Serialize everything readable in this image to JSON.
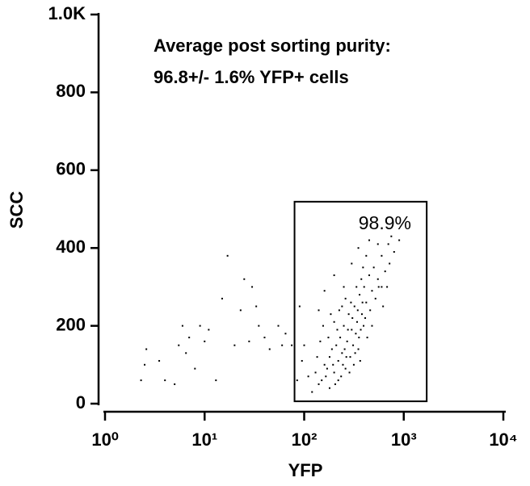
{
  "chart_data": {
    "type": "scatter",
    "x_label": "YFP",
    "y_label": "SCC",
    "annotations": [
      "Average post sorting purity:",
      "96.8+/- 1.6% YFP+ cells"
    ],
    "x_scale": "log",
    "color": "#000000",
    "xlim": [
      1,
      10000
    ],
    "xticks": [
      {
        "value": 1,
        "label": "10⁰"
      },
      {
        "value": 10,
        "label": "10¹"
      },
      {
        "value": 100,
        "label": "10²"
      },
      {
        "value": 1000,
        "label": "10³"
      },
      {
        "value": 10000,
        "label": "10⁴"
      }
    ],
    "ylim": [
      0,
      1000
    ],
    "yticks": [
      0,
      200,
      400,
      600,
      800,
      {
        "value": 1000,
        "label": "1.0K"
      }
    ],
    "gate": {
      "x": [
        80,
        1700
      ],
      "y": [
        6,
        519
      ],
      "label": "98.9%"
    },
    "x": [
      2.3,
      2.6,
      2.5,
      3.5,
      4,
      5,
      5.5,
      6,
      6.5,
      7,
      8,
      9,
      10,
      11,
      13,
      15,
      17,
      20,
      23,
      25,
      28,
      30,
      33,
      35,
      40,
      45,
      55,
      60,
      65,
      75,
      150,
      170,
      180,
      200,
      210,
      220,
      230,
      240,
      250,
      260,
      270,
      280,
      190,
      160,
      140,
      130,
      300,
      320,
      340,
      360,
      380,
      400,
      420,
      450,
      480,
      500,
      550,
      600,
      650,
      700,
      750,
      800,
      200,
      220,
      240,
      180,
      260,
      290,
      310,
      330,
      350,
      370,
      390,
      410,
      430,
      460,
      520,
      560,
      620,
      680,
      720,
      900,
      120,
      135,
      145,
      155,
      165,
      175,
      185,
      195,
      205,
      215,
      225,
      235,
      245,
      255,
      265,
      275,
      285,
      295,
      305,
      315,
      325,
      335,
      345,
      355,
      365,
      375,
      385,
      395,
      110,
      100,
      90,
      85,
      95,
      140,
      160,
      200,
      250,
      300,
      350,
      450,
      550,
      600,
      480,
      420
    ],
    "y": [
      60,
      140,
      100,
      110,
      60,
      50,
      150,
      200,
      130,
      170,
      90,
      200,
      160,
      190,
      60,
      270,
      380,
      150,
      240,
      320,
      160,
      300,
      250,
      200,
      170,
      140,
      200,
      150,
      180,
      150,
      60,
      90,
      120,
      80,
      150,
      110,
      170,
      130,
      200,
      90,
      160,
      230,
      140,
      100,
      50,
      80,
      190,
      250,
      210,
      280,
      230,
      300,
      260,
      330,
      290,
      350,
      320,
      380,
      340,
      410,
      430,
      390,
      210,
      60,
      250,
      40,
      270,
      120,
      150,
      180,
      140,
      190,
      350,
      220,
      170,
      240,
      270,
      300,
      250,
      300,
      360,
      420,
      30,
      120,
      160,
      200,
      70,
      170,
      230,
      100,
      50,
      190,
      240,
      70,
      100,
      140,
      120,
      190,
      80,
      260,
      220,
      100,
      130,
      300,
      240,
      170,
      110,
      320,
      260,
      200,
      70,
      150,
      250,
      60,
      110,
      240,
      290,
      330,
      300,
      360,
      400,
      420,
      410,
      300,
      200,
      380
    ]
  }
}
